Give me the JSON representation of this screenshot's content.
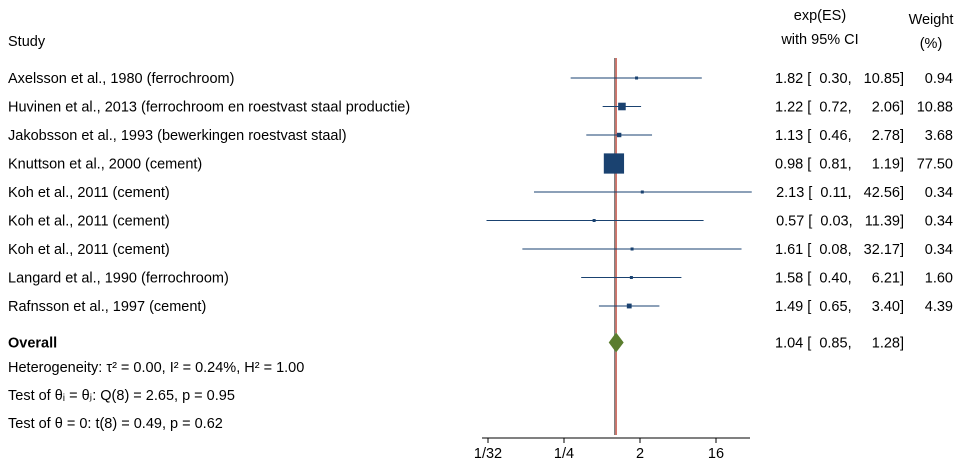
{
  "chart_data": {
    "type": "forest",
    "scale": "log2",
    "headers": {
      "study": "Study",
      "es_line1": "exp(ES)",
      "es_line2": "with 95% CI",
      "weight_line1": "Weight",
      "weight_line2": "(%)"
    },
    "x_ticks": [
      {
        "value": 0.03125,
        "label": "1/32"
      },
      {
        "value": 0.25,
        "label": "1/4"
      },
      {
        "value": 2,
        "label": "2"
      },
      {
        "value": 16,
        "label": "16"
      }
    ],
    "studies": [
      {
        "label": "Axelsson et al., 1980 (ferrochroom)",
        "es": 1.82,
        "lo": 0.3,
        "hi": 10.85,
        "es_text": "1.82",
        "lo_text": "0.30",
        "hi_text": "10.85",
        "weight": "0.94",
        "w": 0.94
      },
      {
        "label": "Huvinen et al., 2013 (ferrochroom en roestvast staal productie)",
        "es": 1.22,
        "lo": 0.72,
        "hi": 2.06,
        "es_text": "1.22",
        "lo_text": "0.72",
        "hi_text": "2.06",
        "weight": "10.88",
        "w": 10.88
      },
      {
        "label": "Jakobsson et al., 1993 (bewerkingen roestvast staal)",
        "es": 1.13,
        "lo": 0.46,
        "hi": 2.78,
        "es_text": "1.13",
        "lo_text": "0.46",
        "hi_text": "2.78",
        "weight": "3.68",
        "w": 3.68
      },
      {
        "label": "Knuttson et al., 2000 (cement)",
        "es": 0.98,
        "lo": 0.81,
        "hi": 1.19,
        "es_text": "0.98",
        "lo_text": "0.81",
        "hi_text": "1.19",
        "weight": "77.50",
        "w": 77.5
      },
      {
        "label": "Koh et al., 2011 (cement)",
        "es": 2.13,
        "lo": 0.11,
        "hi": 42.56,
        "es_text": "2.13",
        "lo_text": "0.11",
        "hi_text": "42.56",
        "weight": "0.34",
        "w": 0.34
      },
      {
        "label": "Koh et al., 2011 (cement)",
        "es": 0.57,
        "lo": 0.03,
        "hi": 11.39,
        "es_text": "0.57",
        "lo_text": "0.03",
        "hi_text": "11.39",
        "weight": "0.34",
        "w": 0.34
      },
      {
        "label": "Koh et al., 2011 (cement)",
        "es": 1.61,
        "lo": 0.08,
        "hi": 32.17,
        "es_text": "1.61",
        "lo_text": "0.08",
        "hi_text": "32.17",
        "weight": "0.34",
        "w": 0.34
      },
      {
        "label": "Langard et al., 1990 (ferrochroom)",
        "es": 1.58,
        "lo": 0.4,
        "hi": 6.21,
        "es_text": "1.58",
        "lo_text": "0.40",
        "hi_text": "6.21",
        "weight": "1.60",
        "w": 1.6
      },
      {
        "label": "Rafnsson et al., 1997 (cement)",
        "es": 1.49,
        "lo": 0.65,
        "hi": 3.4,
        "es_text": "1.49",
        "lo_text": "0.65",
        "hi_text": "3.40",
        "weight": "4.39",
        "w": 4.39
      }
    ],
    "overall": {
      "label": "Overall",
      "es": 1.04,
      "lo": 0.85,
      "hi": 1.28,
      "es_text": "1.04",
      "lo_text": "0.85",
      "hi_text": "1.28"
    },
    "stats": {
      "heterogeneity": "Heterogeneity: τ² = 0.00, I² = 0.24%, H² = 1.00",
      "test_theta_i": "Test of θᵢ = θⱼ: Q(8) = 2.65, p = 0.95",
      "test_theta_0": "Test of θ = 0: t(8) = 0.49, p = 0.62"
    },
    "null_line": 1,
    "colors": {
      "marker": "#1a4270",
      "ci_line": "#1a4270",
      "diamond": "#5a7d2e",
      "null_line": "#777777",
      "overall_line": "#c0392b"
    }
  }
}
